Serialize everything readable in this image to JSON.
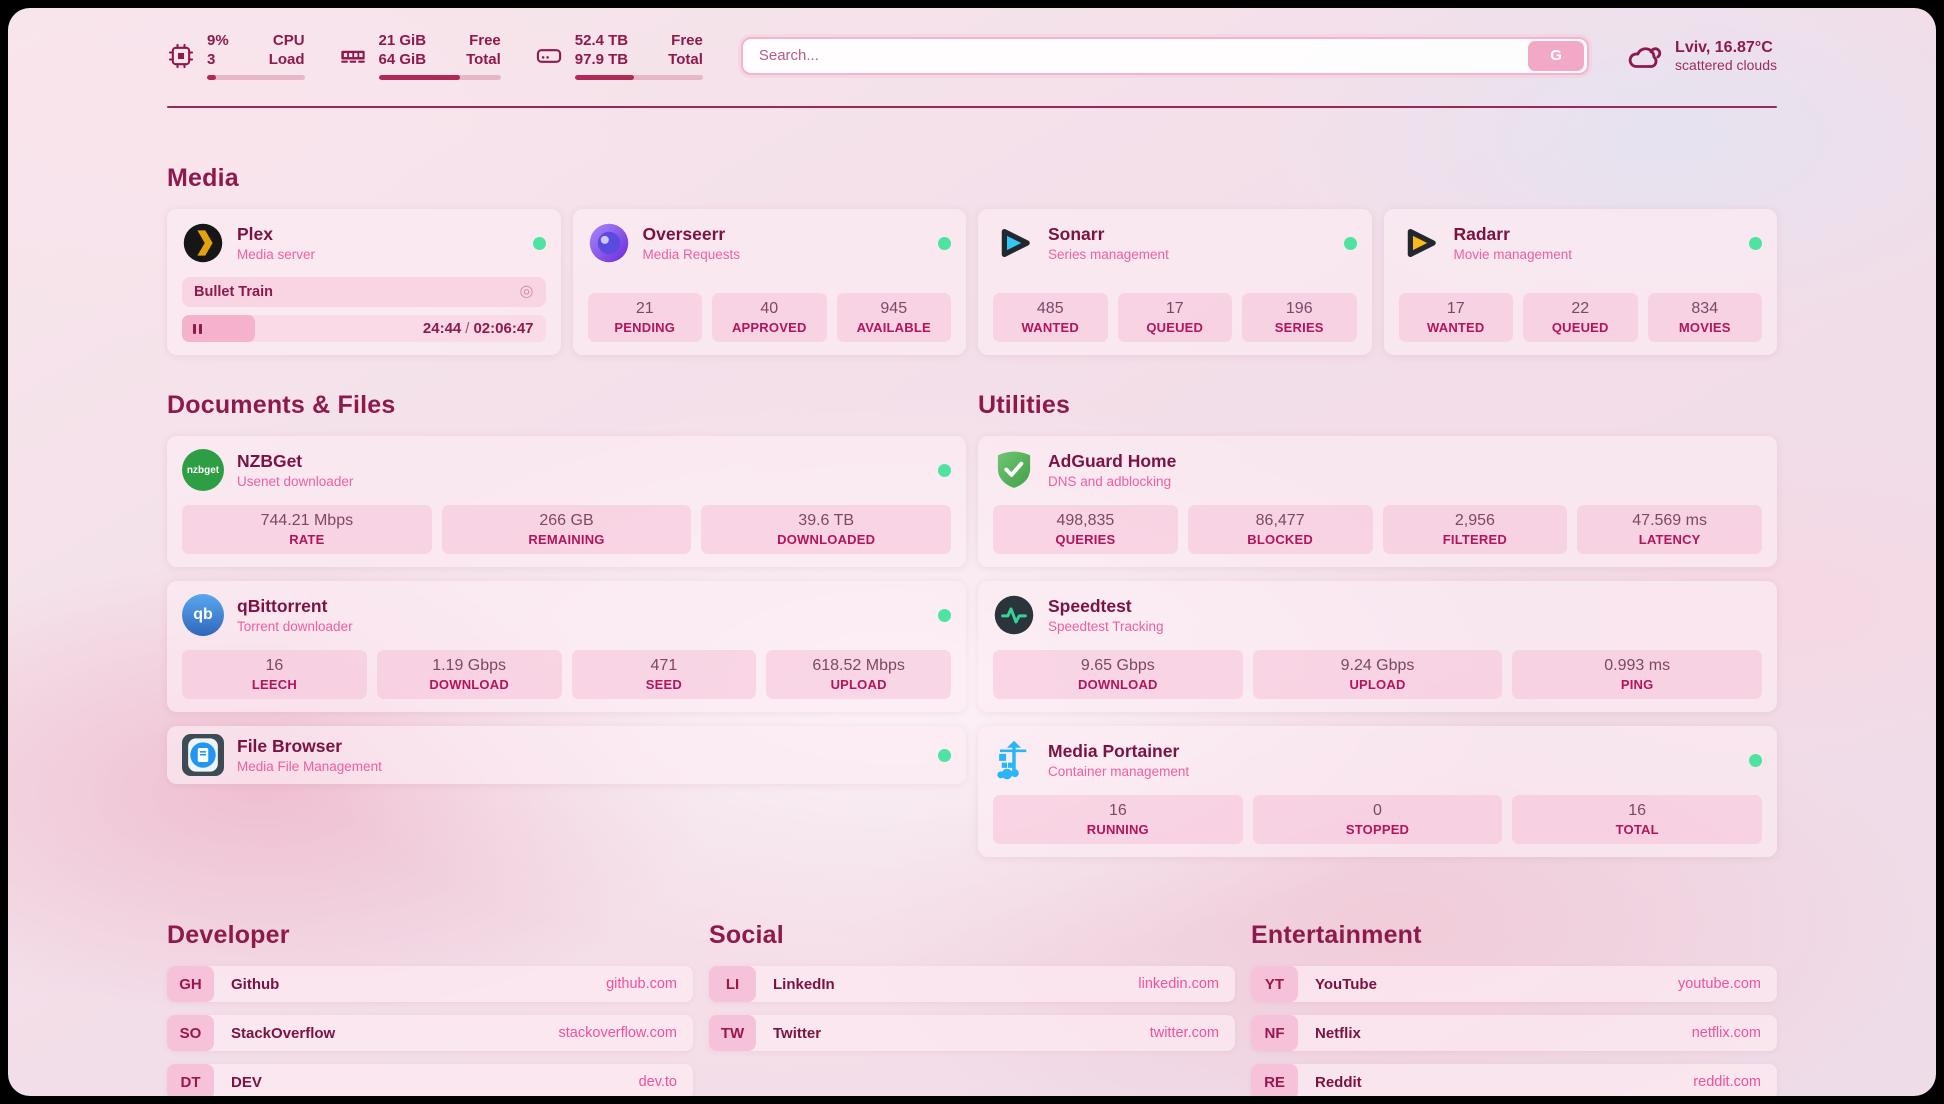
{
  "header": {
    "system": {
      "cpu": {
        "line1_value": "9%",
        "line1_label": "CPU",
        "line2_value": "3",
        "line2_label": "Load",
        "percent": 9
      },
      "memory": {
        "line1_value": "21 GiB",
        "line1_label": "Free",
        "line2_value": "64 GiB",
        "line2_label": "Total",
        "percent": 67
      },
      "storage": {
        "line1_value": "52.4 TB",
        "line1_label": "Free",
        "line2_value": "97.9 TB",
        "line2_label": "Total",
        "percent": 46
      }
    },
    "search": {
      "placeholder": "Search...",
      "button_label": "G"
    },
    "weather": {
      "headline": "Lviv, 16.87°C",
      "condition": "scattered clouds"
    }
  },
  "sections": {
    "media": {
      "title": "Media",
      "plex": {
        "name": "Plex",
        "subtitle": "Media server",
        "online": true,
        "now_playing": "Bullet Train",
        "elapsed": "24:44",
        "time_separator": "/",
        "duration": "02:06:47",
        "progress_percent": 20,
        "cast_glyph": "◎"
      },
      "overseerr": {
        "name": "Overseerr",
        "subtitle": "Media Requests",
        "online": true,
        "stats": [
          {
            "value": "21",
            "label": "PENDING"
          },
          {
            "value": "40",
            "label": "APPROVED"
          },
          {
            "value": "945",
            "label": "AVAILABLE"
          }
        ]
      },
      "sonarr": {
        "name": "Sonarr",
        "subtitle": "Series management",
        "online": true,
        "stats": [
          {
            "value": "485",
            "label": "WANTED"
          },
          {
            "value": "17",
            "label": "QUEUED"
          },
          {
            "value": "196",
            "label": "SERIES"
          }
        ]
      },
      "radarr": {
        "name": "Radarr",
        "subtitle": "Movie management",
        "online": true,
        "stats": [
          {
            "value": "17",
            "label": "WANTED"
          },
          {
            "value": "22",
            "label": "QUEUED"
          },
          {
            "value": "834",
            "label": "MOVIES"
          }
        ]
      }
    },
    "documents": {
      "title": "Documents & Files",
      "nzbget": {
        "name": "NZBGet",
        "subtitle": "Usenet downloader",
        "online": true,
        "logo_text": "nzbget",
        "stats": [
          {
            "value": "744.21 Mbps",
            "label": "RATE"
          },
          {
            "value": "266 GB",
            "label": "REMAINING"
          },
          {
            "value": "39.6 TB",
            "label": "DOWNLOADED"
          }
        ]
      },
      "qbittorrent": {
        "name": "qBittorrent",
        "subtitle": "Torrent downloader",
        "online": true,
        "logo_text": "qb",
        "stats": [
          {
            "value": "16",
            "label": "LEECH"
          },
          {
            "value": "1.19 Gbps",
            "label": "DOWNLOAD"
          },
          {
            "value": "471",
            "label": "SEED"
          },
          {
            "value": "618.52 Mbps",
            "label": "UPLOAD"
          }
        ]
      },
      "filebrowser": {
        "name": "File Browser",
        "subtitle": "Media File Management",
        "online": true
      }
    },
    "utilities": {
      "title": "Utilities",
      "adguard": {
        "name": "AdGuard Home",
        "subtitle": "DNS and adblocking",
        "stats": [
          {
            "value": "498,835",
            "label": "QUERIES"
          },
          {
            "value": "86,477",
            "label": "BLOCKED"
          },
          {
            "value": "2,956",
            "label": "FILTERED"
          },
          {
            "value": "47.569 ms",
            "label": "LATENCY"
          }
        ]
      },
      "speedtest": {
        "name": "Speedtest",
        "subtitle": "Speedtest Tracking",
        "stats": [
          {
            "value": "9.65 Gbps",
            "label": "DOWNLOAD"
          },
          {
            "value": "9.24 Gbps",
            "label": "UPLOAD"
          },
          {
            "value": "0.993 ms",
            "label": "PING"
          }
        ]
      },
      "portainer": {
        "name": "Media Portainer",
        "subtitle": "Container management",
        "online": true,
        "stats": [
          {
            "value": "16",
            "label": "RUNNING"
          },
          {
            "value": "0",
            "label": "STOPPED"
          },
          {
            "value": "16",
            "label": "TOTAL"
          }
        ]
      }
    },
    "developer": {
      "title": "Developer",
      "links": [
        {
          "abbr": "GH",
          "name": "Github",
          "url": "github.com"
        },
        {
          "abbr": "SO",
          "name": "StackOverflow",
          "url": "stackoverflow.com"
        },
        {
          "abbr": "DT",
          "name": "DEV",
          "url": "dev.to"
        }
      ]
    },
    "social": {
      "title": "Social",
      "links": [
        {
          "abbr": "LI",
          "name": "LinkedIn",
          "url": "linkedin.com"
        },
        {
          "abbr": "TW",
          "name": "Twitter",
          "url": "twitter.com"
        }
      ]
    },
    "entertainment": {
      "title": "Entertainment",
      "links": [
        {
          "abbr": "YT",
          "name": "YouTube",
          "url": "youtube.com"
        },
        {
          "abbr": "NF",
          "name": "Netflix",
          "url": "netflix.com"
        },
        {
          "abbr": "RE",
          "name": "Reddit",
          "url": "reddit.com"
        }
      ]
    }
  },
  "colors": {
    "accent": "#8e1a4d",
    "pink": "#f0519c",
    "online_dot": "#4fe3a1"
  }
}
